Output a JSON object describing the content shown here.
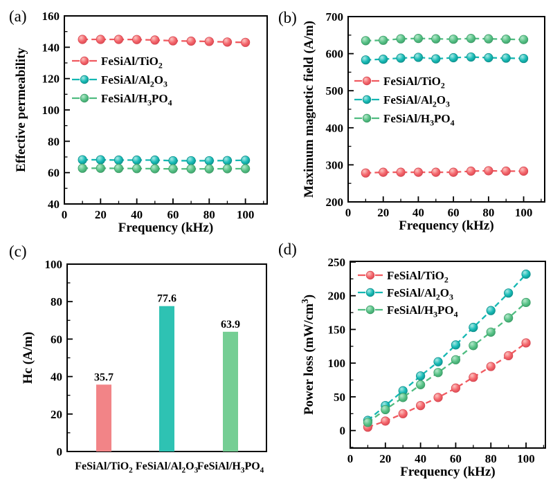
{
  "figure": {
    "background": "#ffffff",
    "colors": {
      "tio2": {
        "line": "#f0595f",
        "base": "#f4666c",
        "hi": "#fcc3c0",
        "dark": "#d7454f",
        "bar": "#f28487"
      },
      "al2o3": {
        "line": "#14b7b2",
        "base": "#19bcb7",
        "hi": "#a9e9e5",
        "dark": "#0c8f8b",
        "bar": "#2ec2b3"
      },
      "h3po4": {
        "line": "#4fbc80",
        "base": "#58c287",
        "hi": "#b5e8cb",
        "dark": "#3a9c66",
        "bar": "#75ce94"
      }
    }
  },
  "chart_data": [
    {
      "id": "a",
      "panel_label": "(a)",
      "type": "line",
      "xlabel": "Frequency (kHz)",
      "ylabel": "Effective permeability",
      "xlim": [
        0,
        112
      ],
      "ylim": [
        40,
        160
      ],
      "xticks": [
        0,
        20,
        40,
        60,
        80,
        100
      ],
      "yticks": [
        40,
        60,
        80,
        100,
        120,
        140,
        160
      ],
      "x_minor_step": 10,
      "y_minor_step": 10,
      "grid": false,
      "legend_position": "inside upper-left",
      "x": [
        10,
        20,
        30,
        40,
        50,
        60,
        70,
        80,
        90,
        100
      ],
      "series": [
        {
          "name": "FeSiAl/TiO_2",
          "color_key": "tio2",
          "values": [
            145,
            145,
            145,
            144.9,
            144.6,
            144.1,
            143.9,
            143.7,
            143.3,
            143.1
          ]
        },
        {
          "name": "FeSiAl/Al_2O_3",
          "color_key": "al2o3",
          "values": [
            68.2,
            68.2,
            68.0,
            68.0,
            68.0,
            67.6,
            67.6,
            67.6,
            67.7,
            67.9
          ]
        },
        {
          "name": "FeSiAl/H_3PO_4",
          "color_key": "h3po4",
          "values": [
            62.8,
            62.8,
            62.7,
            62.6,
            62.5,
            62.4,
            62.4,
            62.4,
            62.5,
            62.5
          ]
        }
      ]
    },
    {
      "id": "b",
      "panel_label": "(b)",
      "type": "line",
      "xlabel": "Frequency (kHz)",
      "ylabel": "Maximum magnetic field (A/m)",
      "xlim": [
        0,
        112
      ],
      "ylim": [
        200,
        700
      ],
      "xticks": [
        0,
        20,
        40,
        60,
        80,
        100
      ],
      "yticks": [
        200,
        300,
        400,
        500,
        600,
        700
      ],
      "x_minor_step": 10,
      "y_minor_step": 50,
      "grid": false,
      "legend_position": "inside middle-left",
      "x": [
        10,
        20,
        30,
        40,
        50,
        60,
        70,
        80,
        90,
        100
      ],
      "series": [
        {
          "name": "FeSiAl/TiO_2",
          "color_key": "tio2",
          "values": [
            278,
            280,
            280,
            280,
            280,
            280,
            283,
            284,
            283,
            283
          ]
        },
        {
          "name": "FeSiAl/Al_2O_3",
          "color_key": "al2o3",
          "values": [
            583,
            585,
            588,
            590,
            586,
            589,
            591,
            589,
            588,
            587
          ]
        },
        {
          "name": "FeSiAl/H_3PO_4",
          "color_key": "h3po4",
          "values": [
            635,
            636,
            640,
            641,
            640,
            639,
            641,
            640,
            639,
            638
          ]
        }
      ]
    },
    {
      "id": "c",
      "panel_label": "(c)",
      "type": "bar",
      "xlabel": "",
      "ylabel": "Hc (A/m)",
      "ylim": [
        0,
        100
      ],
      "yticks": [
        0,
        20,
        40,
        60,
        80,
        100
      ],
      "y_minor_step": 10,
      "grid": false,
      "categories": [
        "FeSiAl/TiO_2",
        "FeSiAl/Al_2O_3",
        "FeSiAl/H_3PO_4"
      ],
      "values": [
        35.7,
        77.6,
        63.9
      ],
      "value_labels": [
        "35.7",
        "77.6",
        "63.9"
      ],
      "bar_color_keys": [
        "tio2",
        "al2o3",
        "h3po4"
      ]
    },
    {
      "id": "d",
      "panel_label": "(d)",
      "type": "line",
      "xlabel": "Frequency (kHz)",
      "ylabel": "Power loss (mW/cm^3)",
      "xlim": [
        0,
        111
      ],
      "ylim": [
        -26,
        251
      ],
      "xticks": [
        0,
        20,
        40,
        60,
        80,
        100
      ],
      "yticks": [
        0,
        50,
        100,
        150,
        200,
        250
      ],
      "x_minor_step": 10,
      "y_minor_step": 25,
      "grid": false,
      "legend_position": "inside upper-left",
      "x": [
        10,
        20,
        30,
        40,
        50,
        60,
        70,
        80,
        90,
        100
      ],
      "series": [
        {
          "name": "FeSiAl/TiO_2",
          "color_key": "tio2",
          "values": [
            5,
            14,
            25,
            37,
            49,
            63,
            79,
            95,
            111,
            130
          ]
        },
        {
          "name": "FeSiAl/Al_2O_3",
          "color_key": "al2o3",
          "values": [
            15,
            37,
            59,
            81,
            102,
            127,
            153,
            178,
            204,
            232
          ]
        },
        {
          "name": "FeSiAl/H_3PO_4",
          "color_key": "h3po4",
          "values": [
            12,
            31,
            49,
            68,
            86,
            105,
            126,
            146,
            167,
            190
          ]
        }
      ]
    }
  ]
}
